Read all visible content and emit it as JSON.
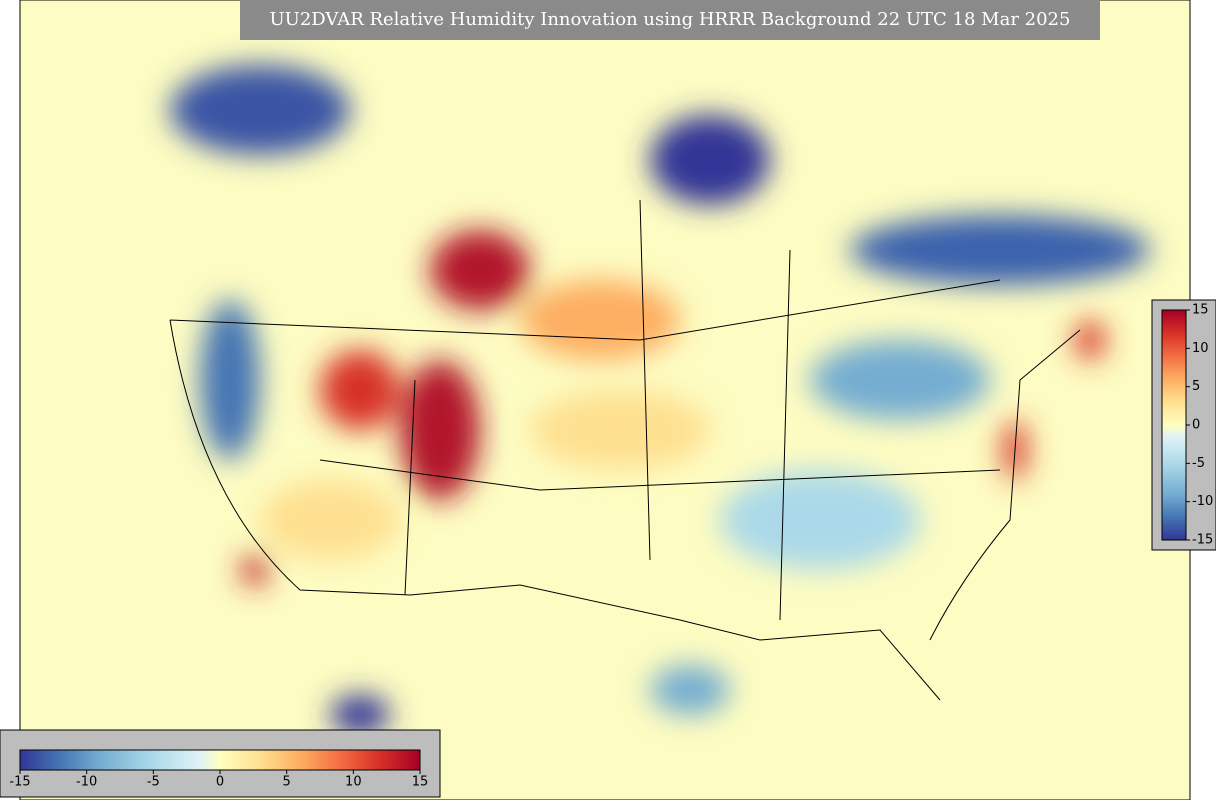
{
  "title": "UU2DVAR Relative Humidity Innovation using HRRR Background 22 UTC 18 Mar 2025",
  "colorbar_bottom": {
    "lim": [
      -15,
      15
    ],
    "ticks": [
      -15,
      -10,
      -5,
      0,
      5,
      10,
      15
    ]
  },
  "colorbar_right": {
    "lim": [
      -15,
      15
    ],
    "ticks": [
      15,
      10,
      5,
      0,
      -5,
      -10,
      -15
    ]
  }
}
